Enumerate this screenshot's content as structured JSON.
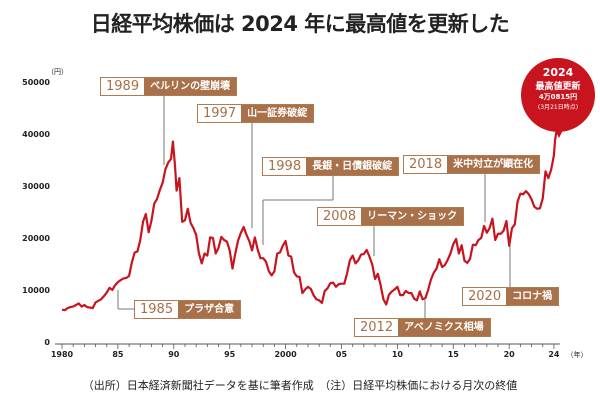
{
  "chart_data": {
    "type": "line",
    "title": "日経平均株価は 2024 年に最高値を更新した",
    "ylabel": "（円）",
    "xlabel": "（年）",
    "ylim": [
      0,
      50000
    ],
    "xlim": [
      1980,
      2024.5
    ],
    "yticks": [
      "0",
      "10000",
      "20000",
      "30000",
      "40000",
      "50000"
    ],
    "ytick_values": [
      0,
      10000,
      20000,
      30000,
      40000,
      50000
    ],
    "xticks": [
      "1980",
      "85",
      "90",
      "95",
      "2000",
      "05",
      "10",
      "15",
      "20",
      "24"
    ],
    "xtick_values": [
      1980,
      1985,
      1990,
      1995,
      2000,
      2005,
      2010,
      2015,
      2020,
      2024
    ],
    "series": [
      {
        "name": "日経平均株価（月次終値）",
        "color": "#c8141e",
        "x": [
          1980,
          1980.25,
          1980.5,
          1980.75,
          1981,
          1981.25,
          1981.5,
          1981.75,
          1982,
          1982.25,
          1982.5,
          1982.75,
          1983,
          1983.25,
          1983.5,
          1983.75,
          1984,
          1984.25,
          1984.5,
          1984.75,
          1985,
          1985.25,
          1985.5,
          1985.75,
          1986,
          1986.25,
          1986.5,
          1986.75,
          1987,
          1987.25,
          1987.5,
          1987.75,
          1988,
          1988.25,
          1988.5,
          1988.75,
          1989,
          1989.25,
          1989.5,
          1989.75,
          1989.92,
          1990.1,
          1990.25,
          1990.5,
          1990.75,
          1991,
          1991.25,
          1991.5,
          1991.75,
          1992,
          1992.25,
          1992.5,
          1992.75,
          1993,
          1993.25,
          1993.5,
          1993.75,
          1994,
          1994.25,
          1994.5,
          1994.75,
          1995,
          1995.25,
          1995.5,
          1995.75,
          1996,
          1996.25,
          1996.5,
          1996.75,
          1997,
          1997.25,
          1997.5,
          1997.75,
          1998,
          1998.25,
          1998.5,
          1998.75,
          1999,
          1999.25,
          1999.5,
          1999.75,
          2000,
          2000.25,
          2000.5,
          2000.75,
          2001,
          2001.25,
          2001.5,
          2001.75,
          2002,
          2002.25,
          2002.5,
          2002.75,
          2003,
          2003.25,
          2003.5,
          2003.75,
          2004,
          2004.25,
          2004.5,
          2004.75,
          2005,
          2005.25,
          2005.5,
          2005.75,
          2006,
          2006.25,
          2006.5,
          2006.75,
          2007,
          2007.25,
          2007.5,
          2007.75,
          2008,
          2008.25,
          2008.5,
          2008.75,
          2009,
          2009.25,
          2009.5,
          2009.75,
          2010,
          2010.25,
          2010.5,
          2010.75,
          2011,
          2011.25,
          2011.5,
          2011.75,
          2012,
          2012.25,
          2012.5,
          2012.75,
          2013,
          2013.25,
          2013.5,
          2013.75,
          2014,
          2014.25,
          2014.5,
          2014.75,
          2015,
          2015.25,
          2015.5,
          2015.75,
          2016,
          2016.25,
          2016.5,
          2016.75,
          2017,
          2017.25,
          2017.5,
          2017.75,
          2018,
          2018.25,
          2018.5,
          2018.75,
          2019,
          2019.25,
          2019.5,
          2019.75,
          2020,
          2020.25,
          2020.5,
          2020.75,
          2021,
          2021.25,
          2021.5,
          2021.75,
          2022,
          2022.25,
          2022.5,
          2022.75,
          2023,
          2023.25,
          2023.5,
          2023.75,
          2024,
          2024.1,
          2024.22
        ],
        "y": [
          6600,
          6500,
          6900,
          7100,
          7200,
          7500,
          7800,
          7200,
          7500,
          7100,
          7000,
          6900,
          8000,
          8300,
          8600,
          9200,
          9900,
          10800,
          10400,
          11300,
          11900,
          12300,
          12600,
          12700,
          13100,
          15700,
          17600,
          17800,
          20000,
          23500,
          25000,
          21500,
          23700,
          27000,
          27900,
          29600,
          31000,
          33600,
          34900,
          35600,
          38915,
          34500,
          29500,
          31900,
          23500,
          23800,
          26000,
          23300,
          22300,
          21000,
          17400,
          15500,
          17400,
          17000,
          20500,
          20400,
          17400,
          18500,
          20600,
          20000,
          19700,
          18000,
          14500,
          17400,
          19900,
          21400,
          22500,
          21000,
          19800,
          18000,
          20500,
          18200,
          16500,
          16500,
          15800,
          14000,
          13200,
          14000,
          17400,
          17600,
          18900,
          19800,
          17000,
          16800,
          13800,
          13000,
          12900,
          9800,
          10500,
          11000,
          10600,
          9400,
          8600,
          8400,
          7900,
          10200,
          10700,
          11700,
          11800,
          11000,
          11500,
          11600,
          11600,
          13600,
          16100,
          17000,
          15500,
          16100,
          17200,
          17300,
          18100,
          16800,
          15300,
          12500,
          13500,
          11300,
          8600,
          7600,
          9500,
          10100,
          10500,
          11000,
          9400,
          9400,
          10200,
          9800,
          9800,
          8700,
          8400,
          10100,
          8600,
          8800,
          10400,
          12400,
          13700,
          14500,
          16300,
          14800,
          15200,
          16200,
          17450,
          19200,
          20200,
          17400,
          19000,
          16000,
          15600,
          16400,
          19100,
          19000,
          20000,
          20400,
          22700,
          21400,
          22300,
          24100,
          20000,
          21200,
          21200,
          21800,
          23650,
          18900,
          22300,
          23000,
          27400,
          28900,
          28800,
          29400,
          28800,
          27800,
          26400,
          26000,
          26100,
          28000,
          33200,
          31900,
          33500,
          36300,
          39166,
          40815
        ]
      }
    ],
    "annotations": [
      {
        "year": "1989",
        "label": "ベルリンの壁崩壊"
      },
      {
        "year": "1997",
        "label": "山一証券破綻"
      },
      {
        "year": "1998",
        "label": "長銀・日債銀破綻"
      },
      {
        "year": "2008",
        "label": "リーマン・ショック"
      },
      {
        "year": "2018",
        "label": "米中対立が顕在化"
      },
      {
        "year": "2020",
        "label": "コロナ禍"
      },
      {
        "year": "2012",
        "label": "アベノミクス相場"
      },
      {
        "year": "1985",
        "label": "プラザ合意"
      }
    ],
    "highlight": {
      "year": "2024",
      "line1": "最高値更新",
      "line2": "4万0815円",
      "line3": "(3月21日時点)",
      "color": "#c8141e"
    },
    "footer": "（出所）日本経済新聞社データを基に筆者作成　（注）日経平均株価における月次の終値"
  }
}
